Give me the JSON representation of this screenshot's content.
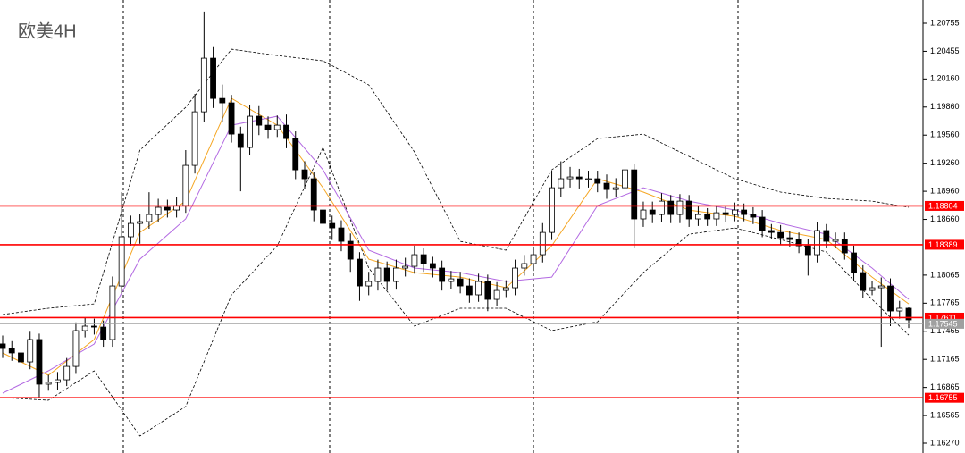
{
  "chart_data": {
    "type": "candlestick",
    "title": "欧美4H",
    "ylim": [
      1.16165,
      1.21003
    ],
    "yticks": [
      1.20755,
      1.20455,
      {
        "value": 1.2016,
        "label": "1.20160"
      },
      {
        "value": 1.1986,
        "label": "1.19860"
      },
      {
        "value": 1.1956,
        "label": "1.19560"
      },
      {
        "value": 1.1926,
        "label": "1.19260"
      },
      {
        "value": 1.1896,
        "label": "1.18960"
      },
      {
        "value": 1.1866,
        "label": "1.18660"
      },
      1.18065,
      1.17765,
      1.17465,
      1.17165,
      1.16865,
      1.16565,
      {
        "value": 1.1627,
        "label": "1.16270"
      }
    ],
    "up_color": "#ffffff",
    "down_color": "#000000",
    "open": [
      1.1733,
      1.17281,
      1.17234,
      1.17138,
      1.17377,
      1.169,
      1.16919,
      1.16947,
      1.1709,
      1.17472,
      1.1752,
      1.1751,
      1.17377,
      1.17949,
      1.18474,
      1.18617,
      1.18636,
      1.18712,
      1.18789,
      1.1876,
      1.18808,
      1.19237,
      1.19809,
      1.20382,
      1.19952,
      1.19905,
      1.19571,
      1.19428,
      1.19762,
      1.19666,
      1.19619,
      1.19666,
      1.19523,
      1.19189,
      1.19094,
      1.1876,
      1.18617,
      1.18569,
      1.18426,
      1.18235,
      1.17949,
      1.17997,
      1.1814,
      1.17997,
      1.1814,
      1.18159,
      1.18283,
      1.18188,
      1.1814,
      1.17997,
      1.18025,
      1.17949,
      1.17854,
      1.17997,
      1.17806,
      1.17901,
      1.1793,
      1.1814,
      1.18188,
      1.18283,
      1.18521,
      1.18998,
      1.19094,
      1.19113,
      1.19094,
      1.19094,
      1.19046,
      1.18979,
      1.18998,
      1.19189,
      1.18665,
      1.1876,
      1.18712,
      1.18855,
      1.18712,
      1.18855,
      1.18665,
      1.18712,
      1.18665,
      1.18731,
      1.18712,
      1.1876,
      1.18712,
      1.18684,
      1.18541,
      1.18521,
      1.18464,
      1.18445,
      1.18378,
      1.18283,
      1.18541,
      1.18426,
      1.18445,
      1.18302,
      1.18092,
      1.17901,
      1.1793,
      1.17949,
      1.17682,
      1.17711
    ],
    "high": [
      1.1742,
      1.1736,
      1.1731,
      1.1746,
      1.1744,
      1.17,
      1.1703,
      1.1718,
      1.1756,
      1.1761,
      1.176,
      1.1758,
      1.1805,
      1.1895,
      1.187,
      1.1872,
      1.1895,
      1.1888,
      1.1887,
      1.189,
      1.194,
      1.2,
      1.2088,
      1.205,
      1.201,
      1.1999,
      1.1965,
      1.1988,
      1.1987,
      1.1976,
      1.1977,
      1.1978,
      1.196,
      1.1928,
      1.1917,
      1.1885,
      1.187,
      1.1865,
      1.1851,
      1.1831,
      1.181,
      1.1823,
      1.1821,
      1.1823,
      1.1825,
      1.1838,
      1.1835,
      1.1826,
      1.1822,
      1.1811,
      1.181,
      1.1803,
      1.1808,
      1.1807,
      1.1799,
      1.1801,
      1.1823,
      1.1828,
      1.1837,
      1.1862,
      1.1918,
      1.1928,
      1.1922,
      1.192,
      1.1918,
      1.1918,
      1.1914,
      1.191,
      1.1928,
      1.1925,
      1.1885,
      1.1885,
      1.1894,
      1.1892,
      1.1893,
      1.1892,
      1.188,
      1.1878,
      1.1881,
      1.188,
      1.1884,
      1.1883,
      1.1879,
      1.1876,
      1.1861,
      1.186,
      1.1854,
      1.1852,
      1.1845,
      1.1863,
      1.1861,
      1.1852,
      1.1852,
      1.1838,
      1.1817,
      1.18,
      1.1804,
      1.1803,
      1.1779,
      1.1772
    ],
    "low": [
      1.1718,
      1.1715,
      1.1705,
      1.1706,
      1.1676,
      1.1683,
      1.1684,
      1.1688,
      1.1701,
      1.174,
      1.1743,
      1.173,
      1.173,
      1.1787,
      1.1838,
      1.184,
      1.1856,
      1.1863,
      1.1868,
      1.1868,
      1.1873,
      1.1915,
      1.197,
      1.1985,
      1.197,
      1.1948,
      1.1896,
      1.1935,
      1.1956,
      1.1952,
      1.1954,
      1.1942,
      1.1909,
      1.1899,
      1.1864,
      1.1852,
      1.1844,
      1.1832,
      1.181,
      1.1779,
      1.1785,
      1.179,
      1.179,
      1.1791,
      1.1805,
      1.1808,
      1.181,
      1.1804,
      1.179,
      1.1792,
      1.1787,
      1.1777,
      1.1778,
      1.1768,
      1.1773,
      1.1783,
      1.1785,
      1.1806,
      1.1811,
      1.182,
      1.1844,
      1.189,
      1.19,
      1.1899,
      1.19,
      1.1895,
      1.1888,
      1.189,
      1.1892,
      1.1835,
      1.1858,
      1.1862,
      1.1863,
      1.1862,
      1.1862,
      1.1858,
      1.1859,
      1.1859,
      1.1859,
      1.1863,
      1.1864,
      1.1864,
      1.1861,
      1.1847,
      1.1845,
      1.1839,
      1.1837,
      1.183,
      1.1806,
      1.182,
      1.1835,
      1.1835,
      1.1823,
      1.18,
      1.1782,
      1.1785,
      1.173,
      1.1752,
      1.176,
      1.175
    ],
    "close": [
      1.17281,
      1.17234,
      1.17138,
      1.17377,
      1.169,
      1.16919,
      1.16947,
      1.1709,
      1.17472,
      1.1752,
      1.1751,
      1.17377,
      1.17949,
      1.18474,
      1.18617,
      1.18636,
      1.18712,
      1.18789,
      1.1876,
      1.18808,
      1.19237,
      1.19809,
      1.20382,
      1.19952,
      1.19905,
      1.19571,
      1.19428,
      1.19762,
      1.19666,
      1.19619,
      1.19666,
      1.19523,
      1.19189,
      1.19094,
      1.1876,
      1.18617,
      1.18569,
      1.18426,
      1.18235,
      1.17949,
      1.17997,
      1.1814,
      1.17997,
      1.1814,
      1.18159,
      1.18283,
      1.18188,
      1.1814,
      1.17997,
      1.18025,
      1.17949,
      1.17854,
      1.17997,
      1.17806,
      1.17901,
      1.1793,
      1.1814,
      1.18188,
      1.18283,
      1.18521,
      1.18998,
      1.19094,
      1.19113,
      1.19094,
      1.19094,
      1.19046,
      1.18979,
      1.18998,
      1.19189,
      1.18665,
      1.1876,
      1.18712,
      1.18855,
      1.18712,
      1.18855,
      1.18665,
      1.18712,
      1.18665,
      1.18731,
      1.18712,
      1.1876,
      1.18712,
      1.18684,
      1.18541,
      1.18521,
      1.18464,
      1.18445,
      1.18378,
      1.18283,
      1.18541,
      1.18426,
      1.18445,
      1.18302,
      1.18092,
      1.17901,
      1.1793,
      1.17949,
      1.17682,
      1.17711,
      1.17587
    ],
    "overlays": [
      {
        "x": [
          0,
          5,
          10,
          15,
          20,
          25,
          30,
          35,
          40,
          45,
          50,
          55,
          60,
          65,
          70,
          75,
          80,
          85,
          90,
          95,
          99
        ],
        "values": [
          1.17644,
          1.17711,
          1.17758,
          1.19399,
          1.19857,
          1.20477,
          1.2041,
          1.20353,
          1.20096,
          1.1938,
          1.18426,
          1.18331,
          1.19189,
          1.19523,
          1.19571,
          1.19332,
          1.19094,
          1.18951,
          1.18884,
          1.18855,
          1.18789
        ],
        "color": "#000000",
        "dashed": true
      },
      {
        "x": [
          0,
          5,
          10,
          15,
          20,
          25,
          30,
          35,
          40,
          45,
          50,
          55,
          60,
          65,
          70,
          75,
          80,
          85,
          90,
          95,
          99
        ],
        "values": [
          1.16757,
          1.16728,
          1.17043,
          1.16346,
          1.16661,
          1.17854,
          1.18378,
          1.19428,
          1.1814,
          1.1752,
          1.17711,
          1.17711,
          1.17472,
          1.17567,
          1.18092,
          1.18502,
          1.18569,
          1.18445,
          1.18312,
          1.17806,
          1.17424
        ],
        "color": "#000000",
        "dashed": true
      },
      {
        "x": [
          0,
          5,
          10,
          15,
          20,
          25,
          30,
          35,
          40,
          45,
          50,
          55,
          60,
          65,
          70,
          75,
          80,
          85,
          90,
          95,
          99
        ],
        "values": [
          1.17234,
          1.16995,
          1.17377,
          1.18521,
          1.18855,
          1.19952,
          1.19666,
          1.18998,
          1.18235,
          1.18092,
          1.18044,
          1.1793,
          1.18378,
          1.19094,
          1.18951,
          1.1876,
          1.18693,
          1.18541,
          1.18445,
          1.18044,
          1.17758
        ],
        "color": "#f5a623",
        "dashed": false
      },
      {
        "x": [
          0,
          5,
          10,
          15,
          20,
          25,
          30,
          35,
          40,
          45,
          50,
          55,
          60,
          65,
          70,
          75,
          80,
          85,
          90,
          95,
          99
        ],
        "values": [
          1.16804,
          1.17043,
          1.17329,
          1.18235,
          1.18665,
          1.19666,
          1.19762,
          1.19189,
          1.18331,
          1.1814,
          1.18092,
          1.17997,
          1.18044,
          1.18808,
          1.18998,
          1.18855,
          1.1876,
          1.18617,
          1.18502,
          1.1814,
          1.17806
        ],
        "color": "#b36ae2",
        "dashed": false
      }
    ],
    "price_lines": [
      {
        "value": 1.18804,
        "color": "#ff0000"
      },
      {
        "value": 1.18389,
        "color": "#ff0000"
      },
      {
        "value": 1.17611,
        "color": "#ff0000"
      },
      {
        "value": 1.16755,
        "color": "#ff0000"
      },
      {
        "value": 1.17545,
        "color": "#a0a0a0"
      }
    ]
  }
}
